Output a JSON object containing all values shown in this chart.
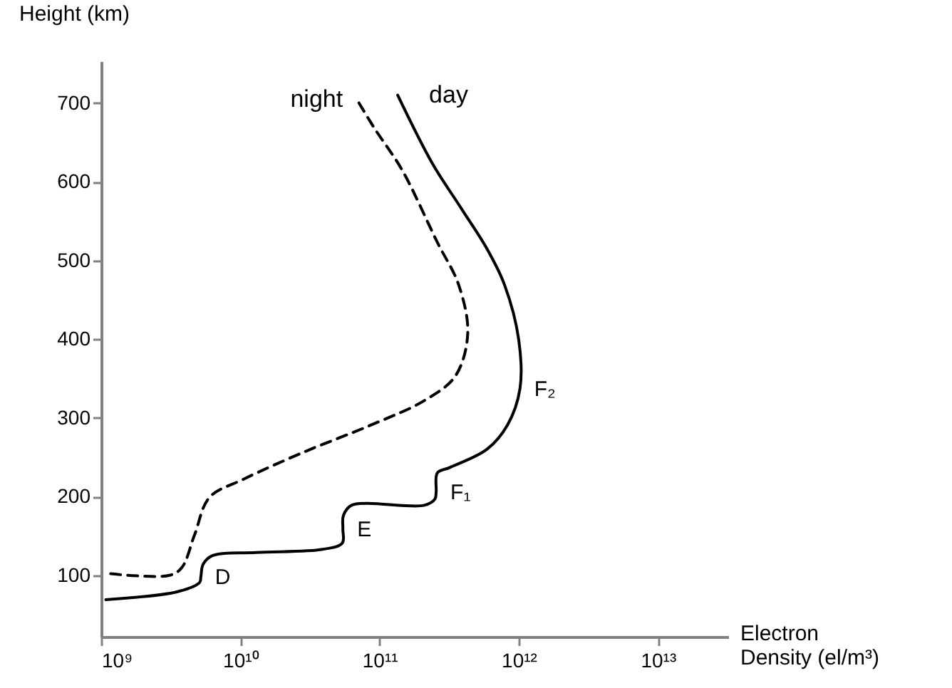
{
  "chart_data": {
    "type": "line",
    "xlabel": "Electron Density (el/m³)",
    "ylabel": "Height (km)",
    "log": "x",
    "xlim": [
      1000000000.0,
      32000000000000.0
    ],
    "ylim": [
      22,
      753
    ],
    "xticks": [
      {
        "value": 1000000000.0,
        "label": "10⁹"
      },
      {
        "value": 10000000000.0,
        "label": "10¹⁰"
      },
      {
        "value": 100000000000.0,
        "label": "10¹¹"
      },
      {
        "value": 1000000000000.0,
        "label": "10¹²"
      },
      {
        "value": 10000000000000.0,
        "label": "10¹³"
      }
    ],
    "yticks": [
      100,
      200,
      300,
      400,
      500,
      600,
      700
    ],
    "grid": false,
    "series": [
      {
        "name": "night",
        "color": "#000000",
        "line_style": "dashed",
        "x": [
          1170000000.0,
          3100000000.0,
          3800000000.0,
          4700000000.0,
          6000000000.0,
          10500000000.0,
          29000000000.0,
          87000000000.0,
          210000000000.0,
          350000000000.0,
          430000000000.0,
          370000000000.0,
          260000000000.0,
          145000000000.0,
          91000000000.0,
          69000000000.0
        ],
        "values": [
          102,
          100,
          110,
          152,
          199,
          222,
          257,
          291,
          322,
          353,
          407,
          469,
          523,
          615,
          669,
          704
        ]
      },
      {
        "name": "day",
        "color": "#000000",
        "line_style": "solid",
        "x": [
          1080000000.0,
          3500000000.0,
          5100000000.0,
          5200000000.0,
          5400000000.0,
          6300000000.0,
          13000000000.0,
          39000000000.0,
          54000000000.0,
          54500000000.0,
          55000000000.0,
          63000000000.0,
          210000000000.0,
          250000000000.0,
          255000000000.0,
          260000000000.0,
          320000000000.0,
          590000000000.0,
          830000000000.0,
          1020000000000.0,
          1000000000000.0,
          790000000000.0,
          590000000000.0,
          390000000000.0,
          240000000000.0,
          135000000000.0
        ],
        "values": [
          69,
          79,
          91,
          98,
          114,
          125,
          129,
          133,
          141,
          159,
          176,
          189,
          189,
          197,
          206,
          230,
          237,
          260,
          291,
          337,
          399,
          469,
          515,
          565,
          623,
          710
        ]
      }
    ],
    "annotations": [
      {
        "text": "D",
        "x": 5200000000.0,
        "y": 98
      },
      {
        "text": "E",
        "x": 54500000000.0,
        "y": 159
      },
      {
        "text": "F₁",
        "x": 255000000000.0,
        "y": 206
      },
      {
        "text": "F₂",
        "x": 1020000000000.0,
        "y": 337
      }
    ]
  }
}
